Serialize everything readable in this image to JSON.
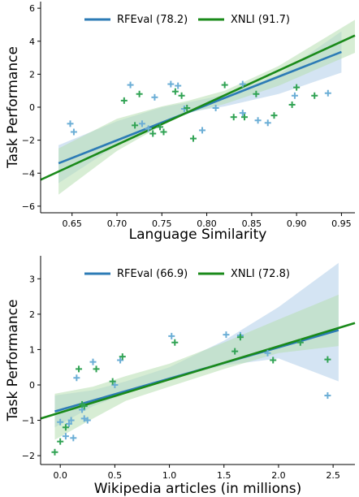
{
  "colors": {
    "rfeval": "#2c7bb6",
    "xnli": "#1a8a1a",
    "rfeval_band": "#c6dbef",
    "xnli_band": "#b7dfb0",
    "rfeval_marker": "#6baed6",
    "xnli_marker": "#31a354"
  },
  "chart_data": [
    {
      "type": "scatter",
      "xlabel": "Language Similarity",
      "ylabel": "Task Performance",
      "xlim": [
        0.615,
        0.965
      ],
      "ylim": [
        -6.4,
        6.4
      ],
      "xticks": [
        "0.65",
        "0.70",
        "0.75",
        "0.80",
        "0.85",
        "0.90",
        "0.95"
      ],
      "xtick_values": [
        0.65,
        0.7,
        0.75,
        0.8,
        0.85,
        0.9,
        0.95
      ],
      "yticks": [
        "−6",
        "−4",
        "−2",
        "0",
        "2",
        "4",
        "6"
      ],
      "ytick_values": [
        -6,
        -4,
        -2,
        0,
        2,
        4,
        6
      ],
      "legend_position": "top-center",
      "series": [
        {
          "name": "RFEval (78.2)",
          "color_key": "rfeval",
          "points": [
            [
              0.648,
              -1.0
            ],
            [
              0.652,
              -1.5
            ],
            [
              0.715,
              1.35
            ],
            [
              0.728,
              -1.0
            ],
            [
              0.735,
              -1.3
            ],
            [
              0.742,
              0.6
            ],
            [
              0.76,
              1.4
            ],
            [
              0.768,
              1.3
            ],
            [
              0.775,
              -0.1
            ],
            [
              0.795,
              -1.4
            ],
            [
              0.81,
              -0.05
            ],
            [
              0.84,
              1.4
            ],
            [
              0.84,
              -0.35
            ],
            [
              0.857,
              -0.8
            ],
            [
              0.868,
              -0.95
            ],
            [
              0.898,
              0.7
            ],
            [
              0.935,
              0.85
            ]
          ],
          "fit": [
            [
              0.635,
              -3.4
            ],
            [
              0.95,
              3.35
            ]
          ],
          "band_upper": [
            [
              0.635,
              -2.3
            ],
            [
              0.7,
              -0.85
            ],
            [
              0.75,
              0.0
            ],
            [
              0.78,
              0.3
            ],
            [
              0.82,
              0.75
            ],
            [
              0.88,
              1.95
            ],
            [
              0.95,
              4.6
            ]
          ],
          "band_lower": [
            [
              0.635,
              -4.6
            ],
            [
              0.7,
              -2.3
            ],
            [
              0.75,
              -0.95
            ],
            [
              0.78,
              -0.3
            ],
            [
              0.82,
              0.05
            ],
            [
              0.88,
              0.8
            ],
            [
              0.95,
              2.1
            ]
          ]
        },
        {
          "name": "XNLI (91.7)",
          "color_key": "xnli",
          "points": [
            [
              0.708,
              0.4
            ],
            [
              0.72,
              -1.1
            ],
            [
              0.725,
              0.8
            ],
            [
              0.74,
              -1.6
            ],
            [
              0.748,
              -1.2
            ],
            [
              0.752,
              -1.5
            ],
            [
              0.765,
              0.95
            ],
            [
              0.772,
              0.7
            ],
            [
              0.778,
              -0.05
            ],
            [
              0.785,
              -1.9
            ],
            [
              0.82,
              1.35
            ],
            [
              0.83,
              -0.6
            ],
            [
              0.842,
              -0.6
            ],
            [
              0.855,
              0.8
            ],
            [
              0.875,
              -0.5
            ],
            [
              0.895,
              0.15
            ],
            [
              0.9,
              1.2
            ],
            [
              0.92,
              0.7
            ]
          ],
          "fit": [
            [
              0.615,
              -4.4
            ],
            [
              0.965,
              4.35
            ]
          ],
          "band_upper": [
            [
              0.635,
              -2.5
            ],
            [
              0.7,
              -0.7
            ],
            [
              0.75,
              0.05
            ],
            [
              0.78,
              0.4
            ],
            [
              0.82,
              1.0
            ],
            [
              0.88,
              2.5
            ],
            [
              0.965,
              5.3
            ]
          ],
          "band_lower": [
            [
              0.635,
              -5.3
            ],
            [
              0.7,
              -2.65
            ],
            [
              0.75,
              -1.1
            ],
            [
              0.78,
              -0.35
            ],
            [
              0.82,
              0.2
            ],
            [
              0.88,
              1.3
            ],
            [
              0.965,
              3.3
            ]
          ]
        }
      ]
    },
    {
      "type": "scatter",
      "xlabel": "Wikipedia articles (in millions)",
      "ylabel": "Task Performance",
      "xlim": [
        -0.18,
        2.7
      ],
      "ylim": [
        -2.25,
        3.65
      ],
      "xticks": [
        "0.0",
        "0.5",
        "1.0",
        "1.5",
        "2.0",
        "2.5"
      ],
      "xtick_values": [
        0.0,
        0.5,
        1.0,
        1.5,
        2.0,
        2.5
      ],
      "yticks": [
        "−2",
        "−1",
        "0",
        "1",
        "2",
        "3"
      ],
      "ytick_values": [
        -2,
        -1,
        0,
        1,
        2,
        3
      ],
      "legend_position": "top-center",
      "series": [
        {
          "name": "RFEval (66.9)",
          "color_key": "rfeval",
          "points": [
            [
              0.0,
              -1.05
            ],
            [
              0.05,
              -1.45
            ],
            [
              0.08,
              -1.1
            ],
            [
              0.1,
              -1.0
            ],
            [
              0.12,
              -1.5
            ],
            [
              0.15,
              0.2
            ],
            [
              0.2,
              -0.7
            ],
            [
              0.22,
              -0.95
            ],
            [
              0.25,
              -1.0
            ],
            [
              0.3,
              0.65
            ],
            [
              0.55,
              0.7
            ],
            [
              0.5,
              0.0
            ],
            [
              1.02,
              1.38
            ],
            [
              1.52,
              1.42
            ],
            [
              1.65,
              1.4
            ],
            [
              1.9,
              0.9
            ],
            [
              2.45,
              -0.3
            ]
          ],
          "fit": [
            [
              -0.05,
              -0.75
            ],
            [
              2.55,
              1.55
            ]
          ],
          "band_upper": [
            [
              -0.05,
              -0.3
            ],
            [
              0.3,
              -0.15
            ],
            [
              0.6,
              0.1
            ],
            [
              1.0,
              0.5
            ],
            [
              1.5,
              1.25
            ],
            [
              2.0,
              2.2
            ],
            [
              2.55,
              3.45
            ]
          ],
          "band_lower": [
            [
              -0.05,
              -1.2
            ],
            [
              0.3,
              -0.6
            ],
            [
              0.6,
              -0.25
            ],
            [
              1.0,
              0.15
            ],
            [
              1.5,
              0.55
            ],
            [
              2.0,
              0.75
            ],
            [
              2.55,
              0.1
            ]
          ]
        },
        {
          "name": "XNLI (72.8)",
          "color_key": "xnli",
          "points": [
            [
              -0.05,
              -1.9
            ],
            [
              0.0,
              -1.6
            ],
            [
              0.05,
              -1.2
            ],
            [
              0.17,
              0.45
            ],
            [
              0.2,
              -0.55
            ],
            [
              0.22,
              -0.6
            ],
            [
              0.33,
              0.45
            ],
            [
              0.48,
              0.1
            ],
            [
              0.57,
              0.8
            ],
            [
              1.05,
              1.2
            ],
            [
              1.6,
              0.95
            ],
            [
              1.65,
              1.35
            ],
            [
              1.95,
              0.7
            ],
            [
              2.2,
              1.2
            ],
            [
              2.45,
              0.72
            ]
          ],
          "fit": [
            [
              -0.18,
              -0.95
            ],
            [
              2.7,
              1.75
            ]
          ],
          "band_upper": [
            [
              -0.05,
              -0.25
            ],
            [
              0.3,
              -0.05
            ],
            [
              0.6,
              0.25
            ],
            [
              1.0,
              0.6
            ],
            [
              1.5,
              1.2
            ],
            [
              2.0,
              1.85
            ],
            [
              2.55,
              2.55
            ]
          ],
          "band_lower": [
            [
              -0.05,
              -1.55
            ],
            [
              0.3,
              -0.95
            ],
            [
              0.6,
              -0.45
            ],
            [
              1.0,
              -0.05
            ],
            [
              1.5,
              0.45
            ],
            [
              2.0,
              0.9
            ],
            [
              2.55,
              1.1
            ]
          ]
        }
      ]
    }
  ]
}
